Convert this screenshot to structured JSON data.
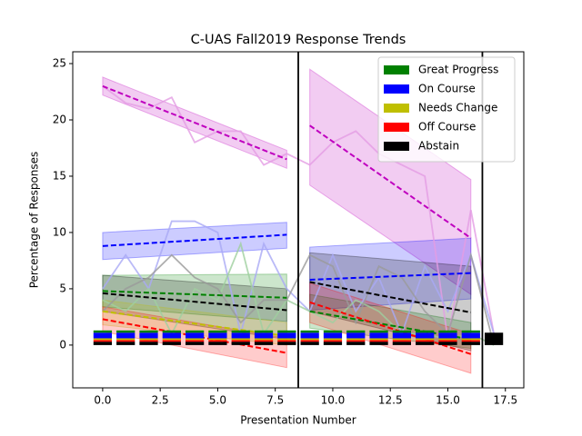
{
  "chart_data": {
    "type": "line",
    "title": "C-UAS Fall2019 Response Trends",
    "xlabel": "Presentation Number",
    "ylabel": "Percentage of Responses",
    "xlim": [
      -1.3,
      18.3
    ],
    "ylim": [
      -3.8,
      26.05
    ],
    "xticks": [
      {
        "value": 0,
        "label": "0.0"
      },
      {
        "value": 2.5,
        "label": "2.5"
      },
      {
        "value": 5,
        "label": "5.0"
      },
      {
        "value": 7.5,
        "label": "7.5"
      },
      {
        "value": 10,
        "label": "10.0"
      },
      {
        "value": 12.5,
        "label": "12.5"
      },
      {
        "value": 15,
        "label": "15.0"
      },
      {
        "value": 17.5,
        "label": "17.5"
      }
    ],
    "yticks": [
      0,
      5,
      10,
      15,
      20,
      25
    ],
    "grid": false,
    "legend": "upper right",
    "x": [
      0,
      1,
      2,
      3,
      4,
      5,
      6,
      7,
      8,
      9,
      10,
      11,
      12,
      13,
      14,
      15,
      16,
      17
    ],
    "series": [
      {
        "name": "Great Progress",
        "color": "#008000",
        "values": [
          0.2,
          0.2,
          0.2,
          0.2,
          0.2,
          0.2,
          0.2,
          0.2,
          0.2,
          0.2,
          0.2,
          0.2,
          0.2,
          0.2,
          0.2,
          0.2,
          0.2,
          0
        ]
      },
      {
        "name": "On Course",
        "color": "#0000ff",
        "values": [
          0.5,
          0.5,
          0.5,
          0.5,
          0.5,
          0.5,
          0.5,
          0.5,
          0.5,
          0.5,
          0.5,
          0.5,
          0.5,
          0.5,
          0.5,
          0.5,
          0.5,
          0
        ]
      },
      {
        "name": "Needs Change",
        "color": "#bfbf00",
        "values": [
          0.15,
          0.15,
          0.15,
          0.15,
          0.15,
          0.15,
          0.15,
          0.15,
          0.15,
          0.15,
          0.15,
          0.15,
          0.15,
          0.15,
          0.15,
          0.15,
          0.15,
          0
        ]
      },
      {
        "name": "Off Course",
        "color": "#ff0000",
        "values": [
          0.15,
          0.15,
          0.15,
          0.15,
          0.15,
          0.15,
          0.15,
          0.15,
          0.15,
          0.15,
          0.15,
          0.15,
          0.15,
          0.15,
          0.15,
          0.15,
          0.15,
          0
        ]
      },
      {
        "name": "Abstain",
        "color": "#000000",
        "values": [
          0.3,
          0.3,
          0.3,
          0.3,
          0.3,
          0.3,
          0.3,
          0.3,
          0.3,
          0.3,
          0.3,
          0.3,
          0.3,
          0.3,
          0.3,
          0.3,
          0.3,
          1.1
        ]
      }
    ],
    "lines": [
      {
        "color": "#e49ce4",
        "values": [
          23,
          21.5,
          21,
          22,
          18,
          19,
          19,
          16,
          17,
          16,
          18,
          19,
          17,
          16,
          15,
          0.5,
          12,
          1
        ]
      },
      {
        "color": "#a9a9f5",
        "values": [
          5,
          8,
          5,
          11,
          11,
          10,
          1,
          9,
          5,
          3,
          8,
          3,
          6,
          1,
          7,
          3,
          8,
          1
        ]
      },
      {
        "color": "#9fd09f",
        "values": [
          4,
          3,
          5,
          1,
          5,
          4,
          9,
          1,
          4,
          3,
          2,
          4,
          3,
          1,
          1,
          0.5,
          1,
          0
        ]
      },
      {
        "color": "#9a9a9a",
        "values": [
          3,
          5,
          6,
          8,
          6,
          5,
          2,
          4,
          4,
          8,
          7,
          2,
          7,
          6,
          3,
          1,
          8,
          0
        ]
      }
    ],
    "trends": [
      {
        "color": "#bf00bf",
        "x": [
          0,
          8
        ],
        "values": [
          23,
          16.5
        ],
        "lower": [
          22.2,
          15.7
        ],
        "upper": [
          23.8,
          17.3
        ]
      },
      {
        "color": "#bf00bf",
        "x": [
          9,
          16
        ],
        "values": [
          19.5,
          9.5
        ],
        "lower": [
          14.2,
          4.5
        ],
        "upper": [
          24.5,
          14.7
        ]
      },
      {
        "color": "#0000ff",
        "x": [
          0,
          8
        ],
        "values": [
          8.8,
          9.8
        ],
        "lower": [
          7.6,
          8.6
        ],
        "upper": [
          10,
          10.9
        ]
      },
      {
        "color": "#0000ff",
        "x": [
          9,
          16
        ],
        "values": [
          5.8,
          6.4
        ],
        "lower": [
          3.1,
          4.1
        ],
        "upper": [
          8.7,
          9.5
        ]
      },
      {
        "color": "#008000",
        "x": [
          0,
          8
        ],
        "values": [
          4.8,
          4.2
        ],
        "lower": [
          3.4,
          2.1
        ],
        "upper": [
          6.2,
          6.3
        ]
      },
      {
        "color": "#008000",
        "x": [
          9,
          16
        ],
        "values": [
          3,
          0.5
        ],
        "lower": [
          1.5,
          -0.3
        ],
        "upper": [
          4.5,
          2
        ]
      },
      {
        "color": "#000000",
        "x": [
          0,
          8
        ],
        "values": [
          4.6,
          3.1
        ],
        "lower": [
          3,
          0.5
        ],
        "upper": [
          6.2,
          5
        ]
      },
      {
        "color": "#000000",
        "x": [
          9,
          16
        ],
        "values": [
          5.6,
          2.9
        ],
        "lower": [
          3,
          -0.5
        ],
        "upper": [
          8.2,
          7
        ]
      },
      {
        "color": "#bfbf00",
        "x": [
          0,
          8
        ],
        "values": [
          3,
          0.8
        ],
        "lower": [
          1.8,
          0
        ],
        "upper": [
          4,
          2
        ]
      },
      {
        "color": "#ff0000",
        "x": [
          0,
          8
        ],
        "values": [
          2.3,
          -0.7
        ],
        "lower": [
          1.2,
          -2
        ],
        "upper": [
          3.4,
          0.6
        ]
      },
      {
        "color": "#ff0000",
        "x": [
          9,
          16
        ],
        "values": [
          3.8,
          -0.8
        ],
        "lower": [
          2,
          -2.5
        ],
        "upper": [
          5.5,
          1
        ]
      }
    ],
    "vlines": [
      8.5,
      16.5
    ]
  }
}
